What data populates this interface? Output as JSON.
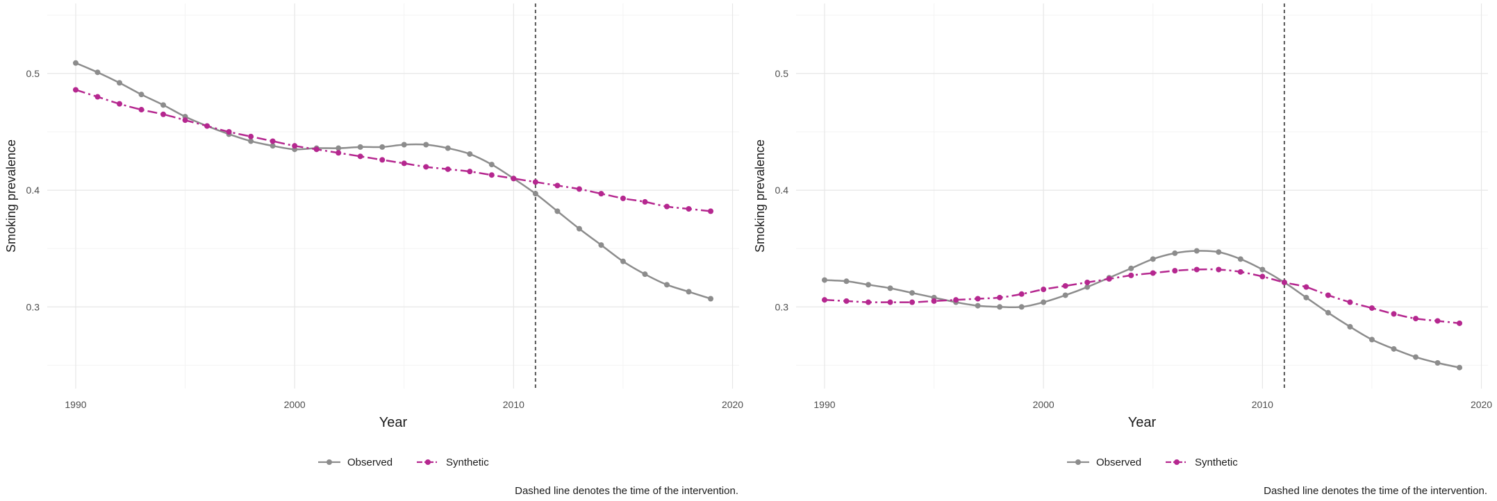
{
  "chart_data": [
    {
      "type": "line",
      "xlabel": "Year",
      "ylabel": "Smoking prevalence",
      "xlim": [
        1988.7,
        2020.3
      ],
      "ylim": [
        0.23,
        0.56
      ],
      "x_ticks": [
        1990,
        2000,
        2010,
        2020
      ],
      "y_ticks": [
        0.3,
        0.4,
        0.5
      ],
      "grid": true,
      "intervention_year": 2011,
      "legend_position": "bottom",
      "caption": "Dashed line denotes the time of the intervention.",
      "x": [
        1990,
        1991,
        1992,
        1993,
        1994,
        1995,
        1996,
        1997,
        1998,
        1999,
        2000,
        2001,
        2002,
        2003,
        2004,
        2005,
        2006,
        2007,
        2008,
        2009,
        2010,
        2011,
        2012,
        2013,
        2014,
        2015,
        2016,
        2017,
        2018,
        2019
      ],
      "series": [
        {
          "name": "Observed",
          "color": "#8c8c8c",
          "style": "solid",
          "values": [
            0.509,
            0.501,
            0.492,
            0.482,
            0.473,
            0.463,
            0.455,
            0.448,
            0.442,
            0.438,
            0.435,
            0.436,
            0.436,
            0.437,
            0.437,
            0.439,
            0.439,
            0.436,
            0.431,
            0.422,
            0.41,
            0.397,
            0.382,
            0.367,
            0.353,
            0.339,
            0.328,
            0.319,
            0.313,
            0.307
          ]
        },
        {
          "name": "Synthetic",
          "color": "#b5278f",
          "style": "dashdot",
          "values": [
            0.486,
            0.48,
            0.474,
            0.469,
            0.465,
            0.46,
            0.455,
            0.45,
            0.446,
            0.442,
            0.438,
            0.435,
            0.432,
            0.429,
            0.426,
            0.423,
            0.42,
            0.418,
            0.416,
            0.413,
            0.41,
            0.407,
            0.404,
            0.401,
            0.397,
            0.393,
            0.39,
            0.386,
            0.384,
            0.382
          ]
        }
      ]
    },
    {
      "type": "line",
      "xlabel": "Year",
      "ylabel": "Smoking prevalence",
      "xlim": [
        1988.7,
        2020.3
      ],
      "ylim": [
        0.23,
        0.56
      ],
      "x_ticks": [
        1990,
        2000,
        2010,
        2020
      ],
      "y_ticks": [
        0.3,
        0.4,
        0.5
      ],
      "grid": true,
      "intervention_year": 2011,
      "legend_position": "bottom",
      "caption": "Dashed line denotes the time of the intervention.",
      "x": [
        1990,
        1991,
        1992,
        1993,
        1994,
        1995,
        1996,
        1997,
        1998,
        1999,
        2000,
        2001,
        2002,
        2003,
        2004,
        2005,
        2006,
        2007,
        2008,
        2009,
        2010,
        2011,
        2012,
        2013,
        2014,
        2015,
        2016,
        2017,
        2018,
        2019
      ],
      "series": [
        {
          "name": "Observed",
          "color": "#8c8c8c",
          "style": "solid",
          "values": [
            0.323,
            0.322,
            0.319,
            0.316,
            0.312,
            0.308,
            0.304,
            0.301,
            0.3,
            0.3,
            0.304,
            0.31,
            0.317,
            0.325,
            0.333,
            0.341,
            0.346,
            0.348,
            0.347,
            0.341,
            0.332,
            0.321,
            0.308,
            0.295,
            0.283,
            0.272,
            0.264,
            0.257,
            0.252,
            0.248
          ]
        },
        {
          "name": "Synthetic",
          "color": "#b5278f",
          "style": "dashdot",
          "values": [
            0.306,
            0.305,
            0.304,
            0.304,
            0.304,
            0.305,
            0.306,
            0.307,
            0.308,
            0.311,
            0.315,
            0.318,
            0.321,
            0.324,
            0.327,
            0.329,
            0.331,
            0.332,
            0.332,
            0.33,
            0.326,
            0.321,
            0.317,
            0.31,
            0.304,
            0.299,
            0.294,
            0.29,
            0.288,
            0.286
          ]
        }
      ]
    }
  ]
}
